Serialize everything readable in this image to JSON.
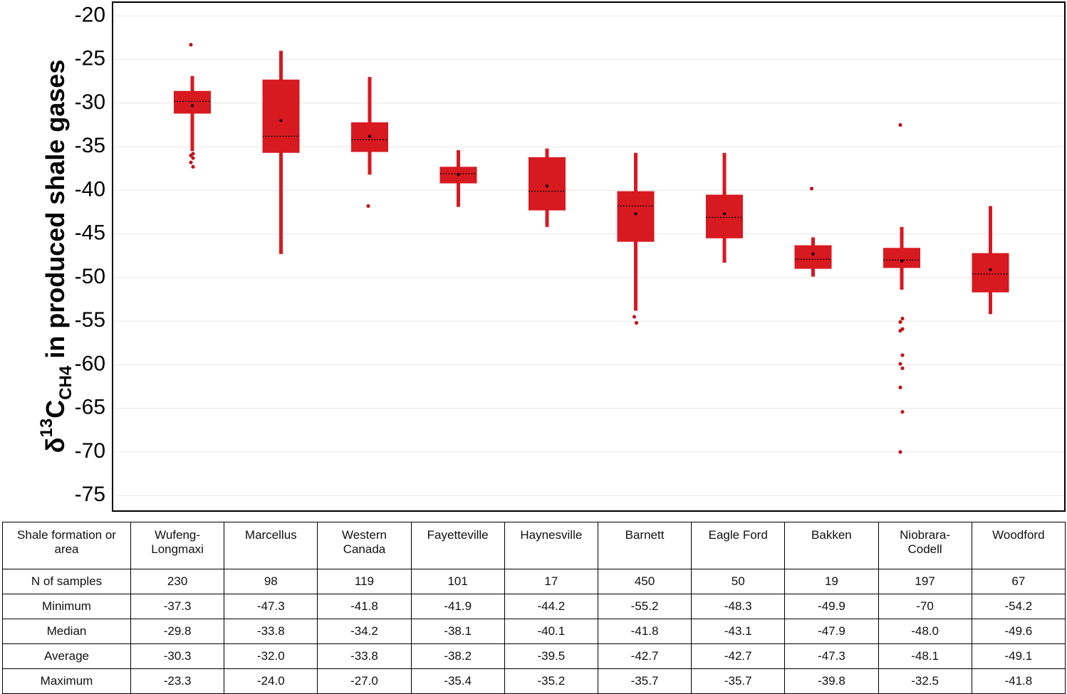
{
  "chart_data": {
    "type": "box",
    "y_label": [
      "δ",
      "13",
      "C",
      "CH4",
      " in produced shale gases"
    ],
    "categories": [
      "Wufeng-\nLongmaxi",
      "Marcellus",
      "Western\nCanada",
      "Fayetteville",
      "Haynesville",
      "Barnett",
      "Eagle Ford",
      "Bakken",
      "Niobrara-\nCodell",
      "Woodford"
    ],
    "color": "#d71920",
    "outlier_color": "#c0141a",
    "grid": true,
    "ylim": [
      -76.7,
      -18.5
    ],
    "yticks": [
      -20,
      -25,
      -30,
      -35,
      -40,
      -45,
      -50,
      -55,
      -60,
      -65,
      -70,
      -75
    ],
    "boxes": [
      {
        "whisker_low": -35.5,
        "q1": -31.2,
        "median": -29.8,
        "q3": -28.6,
        "whisker_high": -26.9,
        "mean": -30.3,
        "outliers": [
          -23.3,
          -35.8,
          -36.0,
          -36.3,
          -36.8,
          -37.3
        ]
      },
      {
        "whisker_low": -47.3,
        "q1": -35.7,
        "median": -33.8,
        "q3": -27.3,
        "whisker_high": -24.0,
        "mean": -32.0,
        "outliers": []
      },
      {
        "whisker_low": -38.2,
        "q1": -35.6,
        "median": -34.2,
        "q3": -32.2,
        "whisker_high": -27.0,
        "mean": -33.8,
        "outliers": [
          -41.8
        ]
      },
      {
        "whisker_low": -41.9,
        "q1": -39.2,
        "median": -38.1,
        "q3": -37.3,
        "whisker_high": -35.4,
        "mean": -38.2,
        "outliers": []
      },
      {
        "whisker_low": -44.2,
        "q1": -42.3,
        "median": -40.1,
        "q3": -36.2,
        "whisker_high": -35.2,
        "mean": -39.5,
        "outliers": []
      },
      {
        "whisker_low": -53.8,
        "q1": -45.9,
        "median": -41.8,
        "q3": -40.1,
        "whisker_high": -35.7,
        "mean": -42.7,
        "outliers": [
          -54.5,
          -55.2
        ]
      },
      {
        "whisker_low": -48.3,
        "q1": -45.5,
        "median": -43.1,
        "q3": -40.5,
        "whisker_high": -35.7,
        "mean": -42.7,
        "outliers": []
      },
      {
        "whisker_low": -49.9,
        "q1": -49.0,
        "median": -47.9,
        "q3": -46.3,
        "whisker_high": -45.4,
        "mean": -47.3,
        "outliers": [
          -39.8
        ]
      },
      {
        "whisker_low": -51.4,
        "q1": -48.9,
        "median": -48.0,
        "q3": -46.6,
        "whisker_high": -44.2,
        "mean": -48.1,
        "outliers": [
          -32.5,
          -54.7,
          -55.1,
          -55.9,
          -56.1,
          -58.9,
          -59.9,
          -60.4,
          -62.6,
          -65.4,
          -70.0
        ]
      },
      {
        "whisker_low": -54.2,
        "q1": -51.7,
        "median": -49.6,
        "q3": -47.2,
        "whisker_high": -41.8,
        "mean": -49.1,
        "outliers": []
      }
    ]
  },
  "table": {
    "corner": "Shale formation  or area",
    "rows": [
      {
        "label": "N of samples",
        "cells": [
          "230",
          "98",
          "119",
          "101",
          "17",
          "450",
          "50",
          "19",
          "197",
          "67"
        ]
      },
      {
        "label": "Minimum",
        "cells": [
          "-37.3",
          "-47.3",
          "-41.8",
          "-41.9",
          "-44.2",
          "-55.2",
          "-48.3",
          "-49.9",
          "-70",
          "-54.2"
        ]
      },
      {
        "label": "Median",
        "cells": [
          "-29.8",
          "-33.8",
          "-34.2",
          "-38.1",
          "-40.1",
          "-41.8",
          "-43.1",
          "-47.9",
          "-48.0",
          "-49.6"
        ]
      },
      {
        "label": "Average",
        "cells": [
          "-30.3",
          "-32.0",
          "-33.8",
          "-38.2",
          "-39.5",
          "-42.7",
          "-42.7",
          "-47.3",
          "-48.1",
          "-49.1"
        ]
      },
      {
        "label": "Maximum",
        "cells": [
          "-23.3",
          "-24.0",
          "-27.0",
          "-35.4",
          "-35.2",
          "-35.7",
          "-35.7",
          "-39.8",
          "-32.5",
          "-41.8"
        ]
      }
    ]
  }
}
